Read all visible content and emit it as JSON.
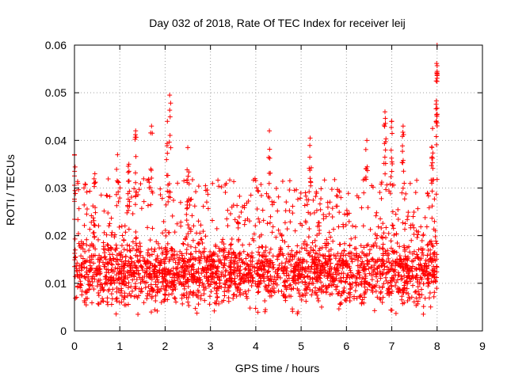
{
  "chart_data": {
    "type": "scatter",
    "title": "Day 032 of 2018, Rate Of TEC Index for receiver leij",
    "xlabel": "GPS time / hours",
    "ylabel": "ROTI / TECUs",
    "xlim": [
      0,
      9
    ],
    "ylim": [
      0,
      0.06
    ],
    "x_ticks": [
      "0",
      "1",
      "2",
      "3",
      "4",
      "5",
      "6",
      "7",
      "8",
      "9"
    ],
    "y_ticks": [
      "0",
      "0.01",
      "0.02",
      "0.03",
      "0.04",
      "0.05",
      "0.06"
    ],
    "grid": true,
    "marker": "plus",
    "colors": {
      "series": "#ff0000",
      "grid": "#a0a0a0",
      "axis": "#000000"
    },
    "series": [
      {
        "name": "ROTI",
        "x_range": [
          0,
          8.0
        ],
        "typical_band": [
          0.005,
          0.02
        ],
        "peaks": [
          {
            "x": 0.0,
            "y": 0.037
          },
          {
            "x": 0.45,
            "y": 0.033
          },
          {
            "x": 0.95,
            "y": 0.037
          },
          {
            "x": 1.2,
            "y": 0.035
          },
          {
            "x": 1.35,
            "y": 0.042
          },
          {
            "x": 1.7,
            "y": 0.043
          },
          {
            "x": 2.05,
            "y": 0.044
          },
          {
            "x": 2.1,
            "y": 0.0495
          },
          {
            "x": 2.5,
            "y": 0.0385
          },
          {
            "x": 4.3,
            "y": 0.042
          },
          {
            "x": 5.2,
            "y": 0.0405
          },
          {
            "x": 6.45,
            "y": 0.04
          },
          {
            "x": 6.85,
            "y": 0.046
          },
          {
            "x": 7.0,
            "y": 0.044
          },
          {
            "x": 7.25,
            "y": 0.043
          },
          {
            "x": 7.9,
            "y": 0.0425
          },
          {
            "x": 8.0,
            "y": 0.06
          },
          {
            "x": 8.0,
            "y": 0.0545
          },
          {
            "x": 8.0,
            "y": 0.0455
          }
        ],
        "minimum": {
          "x": 1.4,
          "y": 0.0035
        }
      }
    ]
  }
}
